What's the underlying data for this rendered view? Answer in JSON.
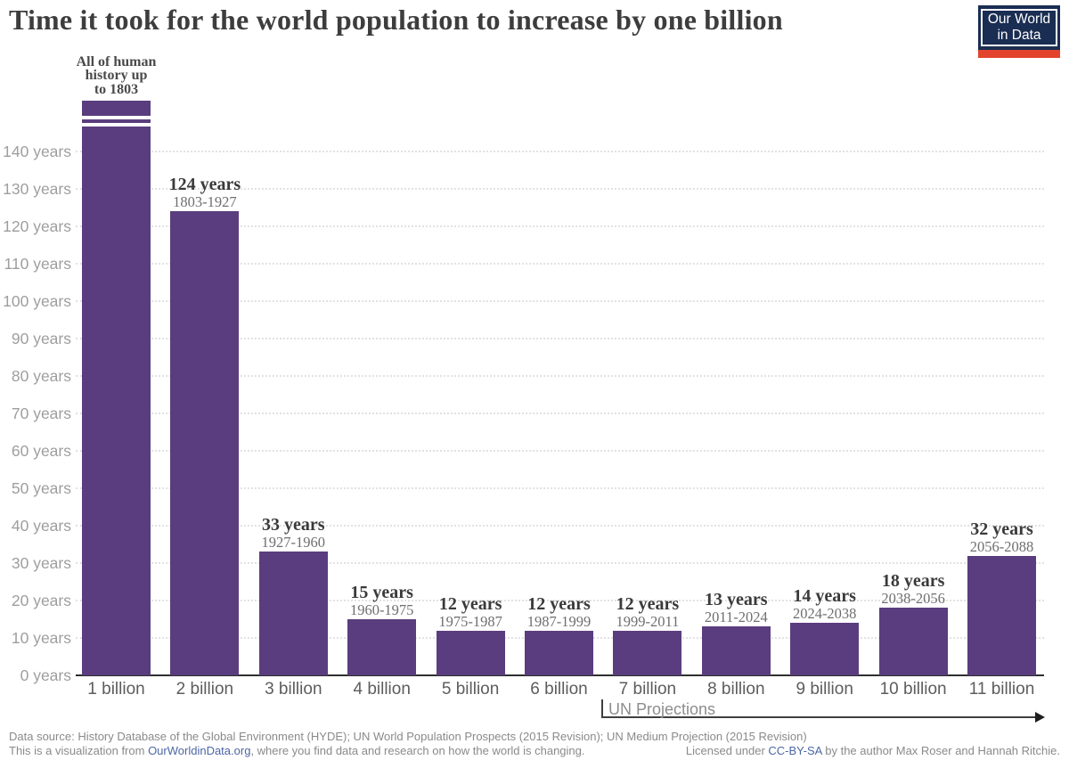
{
  "header": {
    "title": "Time it took for the world population to increase by one billion",
    "logo": {
      "line1": "Our World",
      "line2": "in Data"
    }
  },
  "chart_data": {
    "type": "bar",
    "title": "Time it took for the world population to increase by one billion",
    "ylabel": "years",
    "yticks": [
      0,
      10,
      20,
      30,
      40,
      50,
      60,
      70,
      80,
      90,
      100,
      110,
      120,
      130,
      140
    ],
    "ytick_suffix": " years",
    "ylim": [
      0,
      155
    ],
    "grid": "horizontal dotted",
    "bar_color": "#5a3d7e",
    "bars": [
      {
        "category": "1 billion",
        "years": null,
        "display_years": 153.5,
        "broken_axis": true,
        "annotation_lines": [
          "All of human",
          "history up",
          "to 1803"
        ],
        "note": "All of human history up to 1803"
      },
      {
        "category": "2 billion",
        "years": 124,
        "label": "124 years",
        "range": "1803-1927"
      },
      {
        "category": "3 billion",
        "years": 33,
        "label": "33 years",
        "range": "1927-1960"
      },
      {
        "category": "4 billion",
        "years": 15,
        "label": "15 years",
        "range": "1960-1975"
      },
      {
        "category": "5 billion",
        "years": 12,
        "label": "12 years",
        "range": "1975-1987"
      },
      {
        "category": "6 billion",
        "years": 12,
        "label": "12 years",
        "range": "1987-1999"
      },
      {
        "category": "7 billion",
        "years": 12,
        "label": "12 years",
        "range": "1999-2011",
        "projection": true
      },
      {
        "category": "8 billion",
        "years": 13,
        "label": "13 years",
        "range": "2011-2024",
        "projection": true
      },
      {
        "category": "9 billion",
        "years": 14,
        "label": "14 years",
        "range": "2024-2038",
        "projection": true
      },
      {
        "category": "10 billion",
        "years": 18,
        "label": "18 years",
        "range": "2038-2056",
        "projection": true
      },
      {
        "category": "11 billion",
        "years": 32,
        "label": "32 years",
        "range": "2056-2088",
        "projection": true
      }
    ],
    "projection_annotation": {
      "label": "UN Projections",
      "applies_from": "7 billion"
    },
    "legend": "none"
  },
  "footer": {
    "line1": "Data source: History Database of the Global Environment (HYDE); UN World Population Prospects (2015 Revision); UN Medium Projection (2015 Revision)",
    "line2_left_prefix": "This is a visualization from ",
    "line2_left_link": "OurWorldinData.org",
    "line2_left_suffix": ", where you find data and research on how the world is changing.",
    "line2_right_prefix": "Licensed under ",
    "line2_right_link": "CC-BY-SA",
    "line2_right_suffix": " by the author Max Roser and Hannah Ritchie."
  },
  "colors": {
    "bar": "#5a3d7e",
    "title_text": "#3d3d3d",
    "axis": "#2f2f2f",
    "gridline": "#e2e2e2",
    "ytick_text": "#9e9e9e",
    "xtick_text": "#5d5d5d",
    "link": "#4c67a6",
    "logo_navy": "#1a2d52",
    "logo_red": "#e3432c"
  }
}
